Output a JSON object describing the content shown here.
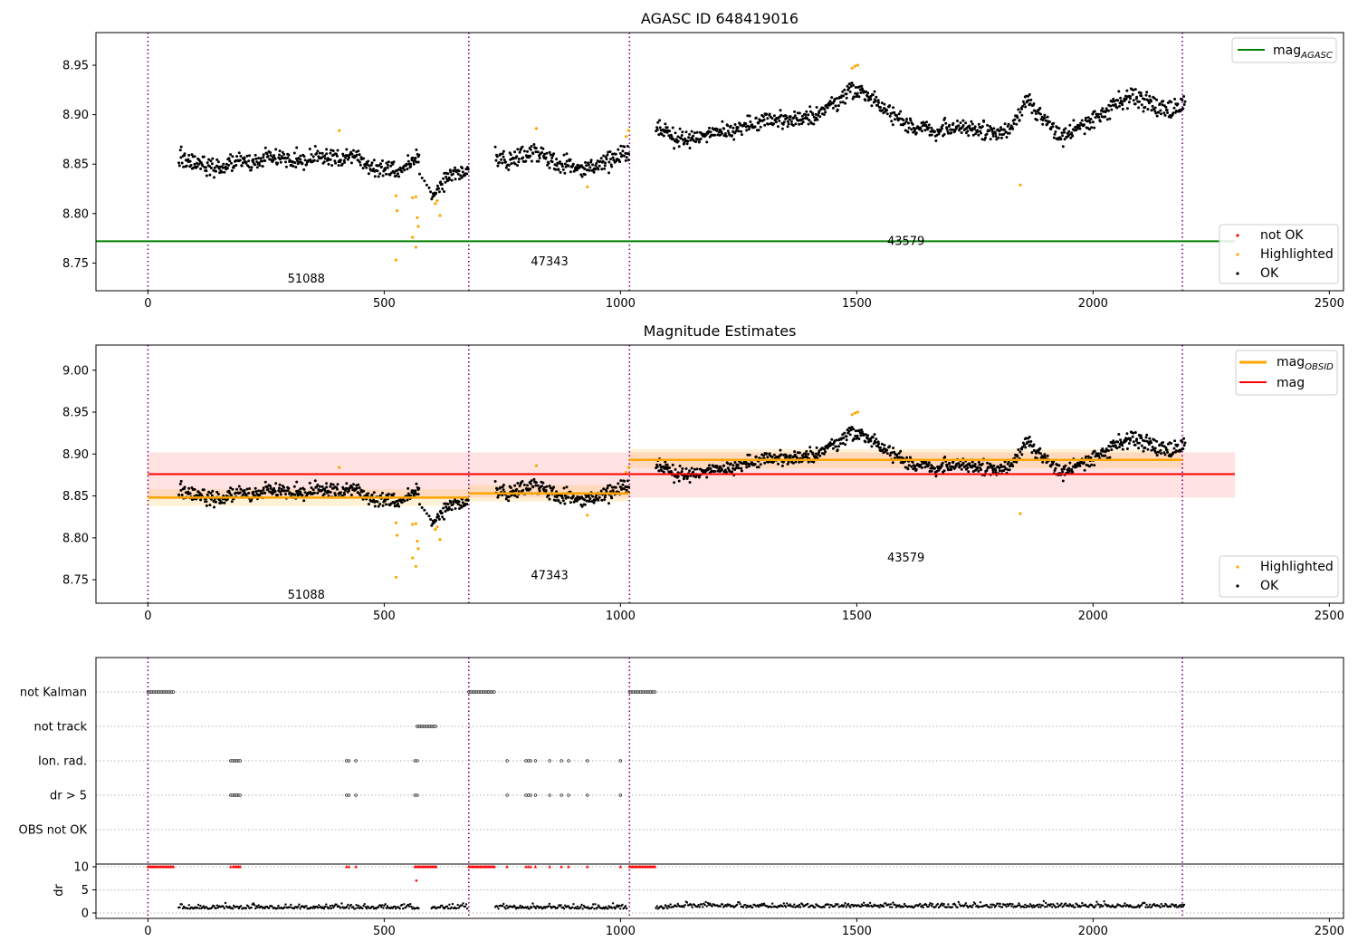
{
  "chart_data": [
    {
      "type": "scatter",
      "title": "AGASC ID 648419016",
      "xlim": [
        -110,
        2530
      ],
      "ylim": [
        8.722,
        8.983
      ],
      "xticks": [
        0,
        500,
        1000,
        1500,
        2000,
        2500
      ],
      "yticks": [
        8.75,
        8.8,
        8.85,
        8.9,
        8.95
      ],
      "grid": false,
      "obs_boundaries": [
        0,
        679,
        1019,
        2189
      ],
      "obs_labels": [
        {
          "text": "51088",
          "x": 335,
          "y": 8.735
        },
        {
          "text": "47343",
          "x": 850,
          "y": 8.752
        },
        {
          "text": "43579",
          "x": 1604,
          "y": 8.773
        }
      ],
      "lines": [
        {
          "name": "mag_AGASC",
          "y": 8.772,
          "x": [
            -110,
            2300
          ],
          "color": "#008000"
        }
      ],
      "series": [
        {
          "name": "not OK",
          "color": "#ff0000"
        },
        {
          "name": "Highlighted",
          "color": "#ffa500"
        },
        {
          "name": "OK",
          "color": "#000000"
        }
      ],
      "legend": [
        {
          "text": "mag",
          "sub": "AGASC",
          "kind": "line",
          "color": "#008000",
          "loc": "top-right"
        },
        {
          "text": "not OK",
          "kind": "dot",
          "color": "#ff0000",
          "loc": "bottom-right"
        },
        {
          "text": "Highlighted",
          "kind": "dot",
          "color": "#ffa500",
          "loc": "bottom-right"
        },
        {
          "text": "OK",
          "kind": "dot",
          "color": "#000000",
          "loc": "bottom-right"
        }
      ],
      "segments": [
        {
          "x0": 65,
          "x1": 575,
          "ys": [
            8.857,
            8.852,
            8.848,
            8.845,
            8.85,
            8.853,
            8.851,
            8.857,
            8.856,
            8.854,
            8.853,
            8.858,
            8.856,
            8.855,
            8.858,
            8.847,
            8.845,
            8.843,
            8.848,
            8.858
          ]
        },
        {
          "x0": 600,
          "x1": 678,
          "ys": [
            8.822,
            8.828,
            8.837,
            8.843,
            8.842
          ]
        },
        {
          "x0": 735,
          "x1": 1019,
          "ys": [
            8.86,
            8.851,
            8.858,
            8.863,
            8.857,
            8.852,
            8.848,
            8.843,
            8.847,
            8.852,
            8.857,
            8.863
          ]
        },
        {
          "x0": 1075,
          "x1": 2195,
          "ys": [
            8.89,
            8.877,
            8.876,
            8.883,
            8.885,
            8.888,
            8.892,
            8.895,
            8.893,
            8.898,
            8.91,
            8.925,
            8.92,
            8.905,
            8.892,
            8.885,
            8.883,
            8.887,
            8.885,
            8.883,
            8.883,
            8.915,
            8.895,
            8.878,
            8.885,
            8.898,
            8.91,
            8.92,
            8.91,
            8.905,
            8.915
          ]
        }
      ],
      "highlighted_points": [
        [
          405,
          8.884
        ],
        [
          525,
          8.818
        ],
        [
          527,
          8.803
        ],
        [
          525,
          8.753
        ],
        [
          560,
          8.816
        ],
        [
          560,
          8.776
        ],
        [
          567,
          8.766
        ],
        [
          567,
          8.817
        ],
        [
          570,
          8.796
        ],
        [
          572,
          8.787
        ],
        [
          608,
          8.81
        ],
        [
          612,
          8.813
        ],
        [
          618,
          8.798
        ],
        [
          822,
          8.886
        ],
        [
          930,
          8.827
        ],
        [
          1012,
          8.878
        ],
        [
          1017,
          8.884
        ],
        [
          1490,
          8.947
        ],
        [
          1496,
          8.949
        ],
        [
          1502,
          8.95
        ],
        [
          1846,
          8.829
        ]
      ]
    },
    {
      "type": "scatter",
      "title": "Magnitude Estimates",
      "xlim": [
        -110,
        2530
      ],
      "ylim": [
        8.722,
        9.03
      ],
      "xticks": [
        0,
        500,
        1000,
        1500,
        2000,
        2500
      ],
      "yticks": [
        8.75,
        8.8,
        8.85,
        8.9,
        8.95,
        9.0
      ],
      "grid": false,
      "obs_boundaries": [
        0,
        679,
        1019,
        2189
      ],
      "obs_labels": [
        {
          "text": "51088",
          "x": 335,
          "y": 8.733
        },
        {
          "text": "47343",
          "x": 850,
          "y": 8.756
        },
        {
          "text": "43579",
          "x": 1604,
          "y": 8.777
        }
      ],
      "mag": {
        "value": 8.876,
        "band": [
          8.848,
          8.902
        ],
        "x": [
          0,
          2300
        ],
        "color": "#ff0000"
      },
      "mag_obsid": [
        {
          "x": [
            0,
            679
          ],
          "value": 8.848,
          "band": [
            8.838,
            8.858
          ]
        },
        {
          "x": [
            679,
            1019
          ],
          "value": 8.853,
          "band": [
            8.843,
            8.863
          ]
        },
        {
          "x": [
            1019,
            2189
          ],
          "value": 8.893,
          "band": [
            8.883,
            8.906
          ]
        }
      ],
      "series": [
        {
          "name": "Highlighted",
          "color": "#ffa500"
        },
        {
          "name": "OK",
          "color": "#000000"
        }
      ],
      "legend": [
        {
          "text": "mag",
          "sub": "OBSID",
          "kind": "thickline",
          "color": "#ffa500",
          "loc": "top-right"
        },
        {
          "text": "mag",
          "kind": "line",
          "color": "#ff0000",
          "loc": "top-right"
        },
        {
          "text": "Highlighted",
          "kind": "dot",
          "color": "#ffa500",
          "loc": "bottom-right"
        },
        {
          "text": "OK",
          "kind": "dot",
          "color": "#000000",
          "loc": "bottom-right"
        }
      ]
    },
    {
      "type": "scatter",
      "title": "",
      "xlim": [
        -110,
        2530
      ],
      "xticks": [
        0,
        500,
        1000,
        1500,
        2000,
        2500
      ],
      "obs_boundaries": [
        0,
        679,
        1019,
        2189
      ],
      "flags": [
        {
          "label": "not Kalman",
          "ranges": [
            [
              0,
              55
            ],
            [
              679,
              735
            ],
            [
              1019,
              1075
            ]
          ],
          "points": []
        },
        {
          "label": "not track",
          "ranges": [
            [
              570,
              610
            ]
          ],
          "points": []
        },
        {
          "label": "Ion. rad.",
          "ranges": [
            [
              180,
              195
            ]
          ],
          "points": [
            175,
            178,
            420,
            425,
            440,
            565,
            570,
            760,
            800,
            805,
            810,
            820,
            850,
            875,
            890,
            930,
            1000
          ]
        },
        {
          "label": "dr > 5",
          "ranges": [
            [
              180,
              195
            ]
          ],
          "points": [
            175,
            178,
            420,
            425,
            440,
            565,
            570,
            760,
            800,
            805,
            810,
            820,
            850,
            875,
            890,
            930,
            1000
          ]
        },
        {
          "label": "OBS not OK",
          "ranges": [],
          "points": []
        }
      ],
      "dr": {
        "ylabel": "dr",
        "yticks": [
          0,
          5,
          10
        ],
        "ylim": [
          -0.5,
          10.5
        ],
        "red_ranges": [
          [
            0,
            55
          ],
          [
            180,
            195
          ],
          [
            565,
            610
          ],
          [
            679,
            735
          ],
          [
            1019,
            1075
          ]
        ],
        "red_points": [
          175,
          420,
          425,
          440,
          760,
          800,
          805,
          810,
          820,
          850,
          875,
          890,
          930,
          1000
        ],
        "red_extra": [
          [
            568,
            7
          ]
        ],
        "black_segments": [
          [
            65,
            575
          ],
          [
            600,
            678
          ],
          [
            735,
            1015
          ],
          [
            1075,
            2195
          ]
        ]
      }
    }
  ]
}
